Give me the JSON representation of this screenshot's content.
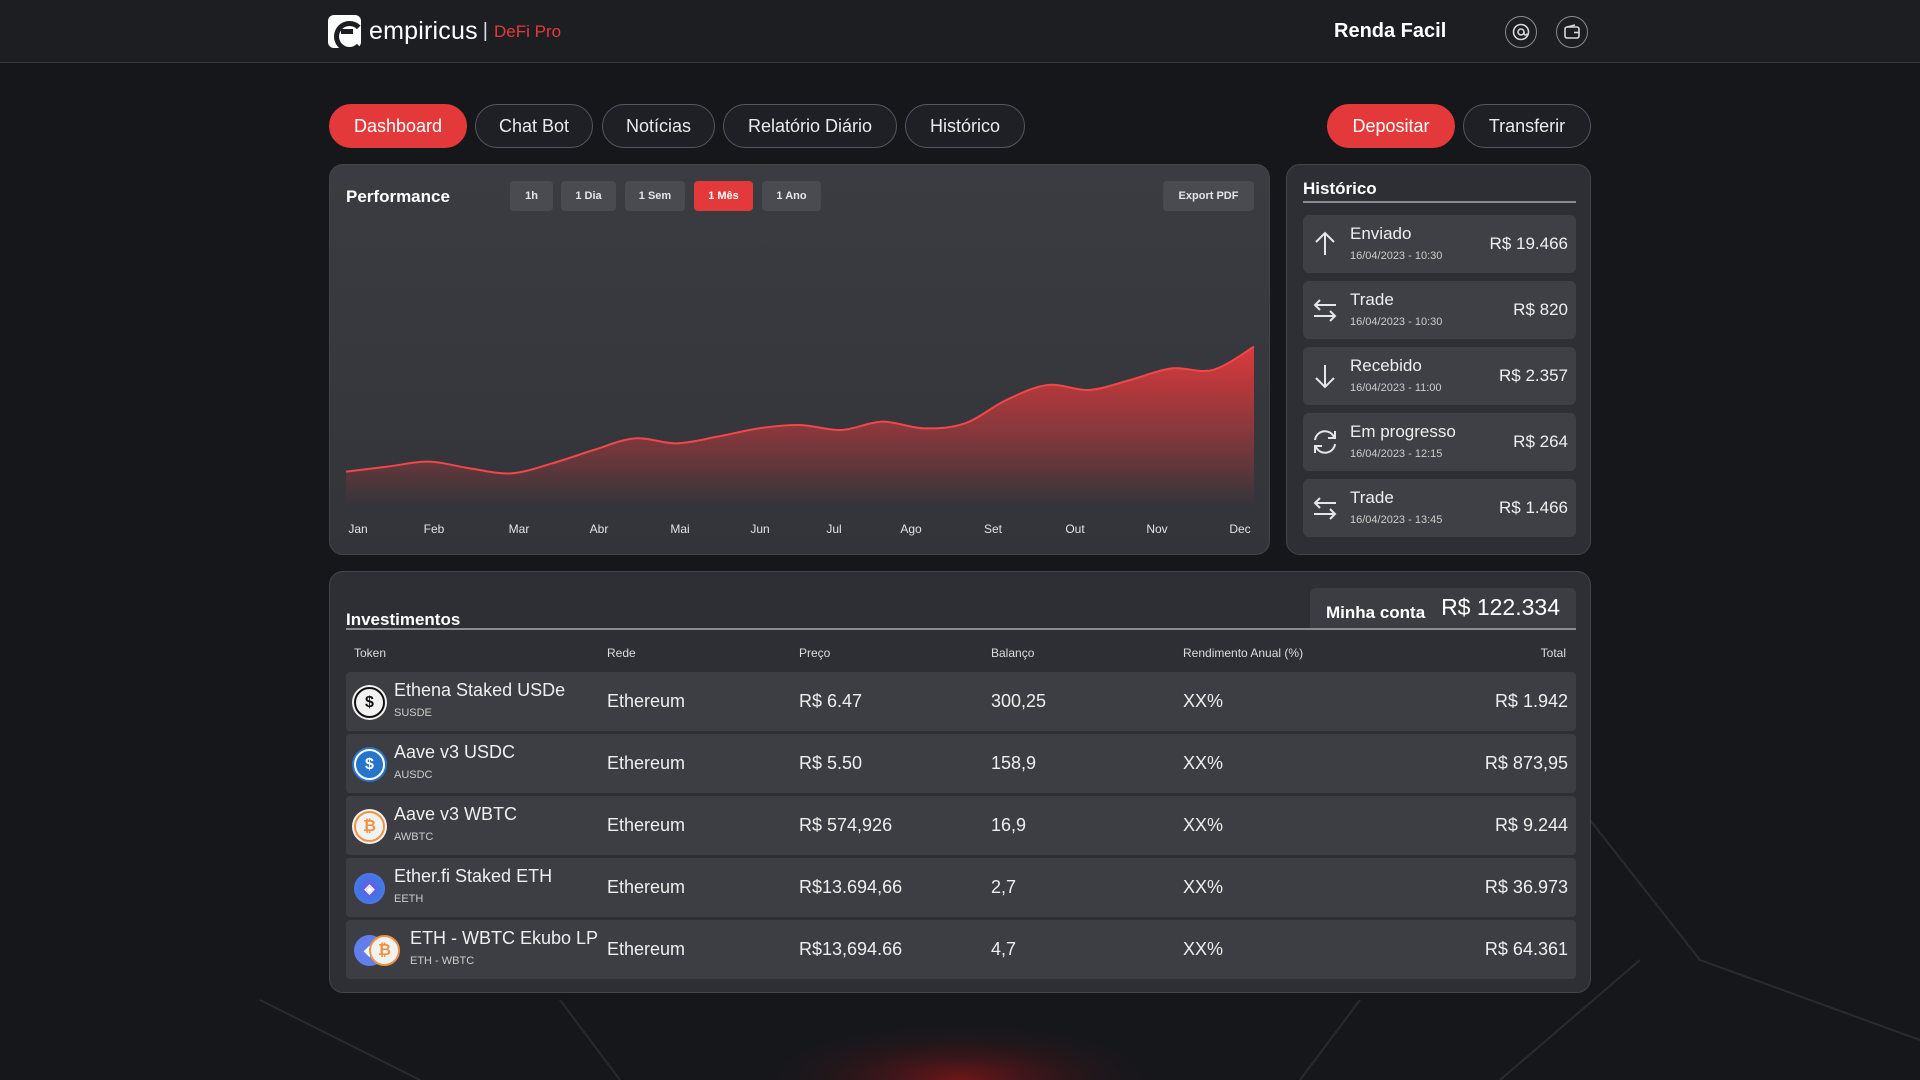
{
  "header": {
    "brand": "empiricus",
    "brand_separator": "|",
    "brand_product": "DeFi Pro",
    "user_name": "Renda Facil",
    "icons": [
      "user-circle-icon",
      "wallet-icon"
    ]
  },
  "tabs": [
    {
      "label": "Dashboard",
      "active": true
    },
    {
      "label": "Chat Bot",
      "active": false
    },
    {
      "label": "Notícias",
      "active": false
    },
    {
      "label": "Relatório Diário",
      "active": false
    },
    {
      "label": "Histórico",
      "active": false
    }
  ],
  "actions": {
    "deposit": "Depositar",
    "transfer": "Transferir"
  },
  "performance": {
    "title": "Performance",
    "ranges": [
      {
        "label": "1h",
        "active": false
      },
      {
        "label": "1 Dia",
        "active": false
      },
      {
        "label": "1 Sem",
        "active": false
      },
      {
        "label": "1 Mês",
        "active": true
      },
      {
        "label": "1 Ano",
        "active": false
      }
    ],
    "export_label": "Export PDF"
  },
  "chart_data": {
    "type": "area",
    "title": "Performance",
    "categories": [
      "Jan",
      "Feb",
      "Mar",
      "Abr",
      "Mai",
      "Jun",
      "Jul",
      "Ago",
      "Set",
      "Out",
      "Nov",
      "Dec"
    ],
    "x": [
      0,
      0.5,
      1,
      1.5,
      2,
      2.5,
      3,
      3.5,
      4,
      4.5,
      5,
      5.5,
      6,
      6.5,
      7,
      7.5,
      8,
      8.5,
      9,
      9.5,
      10,
      10.5,
      11
    ],
    "series": [
      {
        "values": [
          14,
          17,
          20,
          16,
          13,
          19,
          27,
          34,
          31,
          35,
          40,
          42,
          39,
          44,
          40,
          43,
          57,
          66,
          63,
          69,
          76,
          75,
          89
        ]
      }
    ],
    "ylim": [
      0,
      150
    ],
    "color": "#e4393b",
    "grid": false
  },
  "history": {
    "title": "Histórico",
    "items": [
      {
        "icon": "arrow-up-icon",
        "label": "Enviado",
        "date": "16/04/2023 - 10:30",
        "amount": "R$ 19.466"
      },
      {
        "icon": "swap-arrows-icon",
        "label": "Trade",
        "date": "16/04/2023 - 10:30",
        "amount": "R$ 820"
      },
      {
        "icon": "arrow-down-icon",
        "label": "Recebido",
        "date": "16/04/2023 - 11:00",
        "amount": "R$ 2.357"
      },
      {
        "icon": "refresh-icon",
        "label": "Em progresso",
        "date": "16/04/2023 - 12:15",
        "amount": "R$ 264"
      },
      {
        "icon": "swap-arrows-icon",
        "label": "Trade",
        "date": "16/04/2023 - 13:45",
        "amount": "R$ 1.466"
      }
    ]
  },
  "investments": {
    "title": "Investimentos",
    "account_label": "Minha conta",
    "account_value": "R$ 122.334",
    "columns": [
      "Token",
      "Rede",
      "Preço",
      "Balanço",
      "Rendimento Anual (%)",
      "Total"
    ],
    "rows": [
      {
        "icon": "usde-token-icon",
        "name": "Ethena Staked USDe",
        "symbol": "SUSDE",
        "network": "Ethereum",
        "price": "R$ 6.47",
        "balance": "300,25",
        "yield": "XX%",
        "total": "R$ 1.942"
      },
      {
        "icon": "usdc-token-icon",
        "name": "Aave v3 USDC",
        "symbol": "AUSDC",
        "network": "Ethereum",
        "price": "R$ 5.50",
        "balance": "158,9",
        "yield": "XX%",
        "total": "R$ 873,95"
      },
      {
        "icon": "wbtc-token-icon",
        "name": "Aave v3 WBTC",
        "symbol": "AWBTC",
        "network": "Ethereum",
        "price": "R$ 574,926",
        "balance": "16,9",
        "yield": "XX%",
        "total": "R$ 9.244"
      },
      {
        "icon": "eeth-token-icon",
        "name": "Ether.fi Staked ETH",
        "symbol": "EETH",
        "network": "Ethereum",
        "price": "R$13.694,66",
        "balance": "2,7",
        "yield": "XX%",
        "total": "R$ 36.973"
      },
      {
        "icon": "eth-wbtc-lp-icon",
        "name": "ETH - WBTC Ekubo LP",
        "symbol": "ETH - WBTC",
        "network": "Ethereum",
        "price": "R$13,694.66",
        "balance": "4,7",
        "yield": "XX%",
        "total": "R$ 64.361"
      }
    ]
  }
}
